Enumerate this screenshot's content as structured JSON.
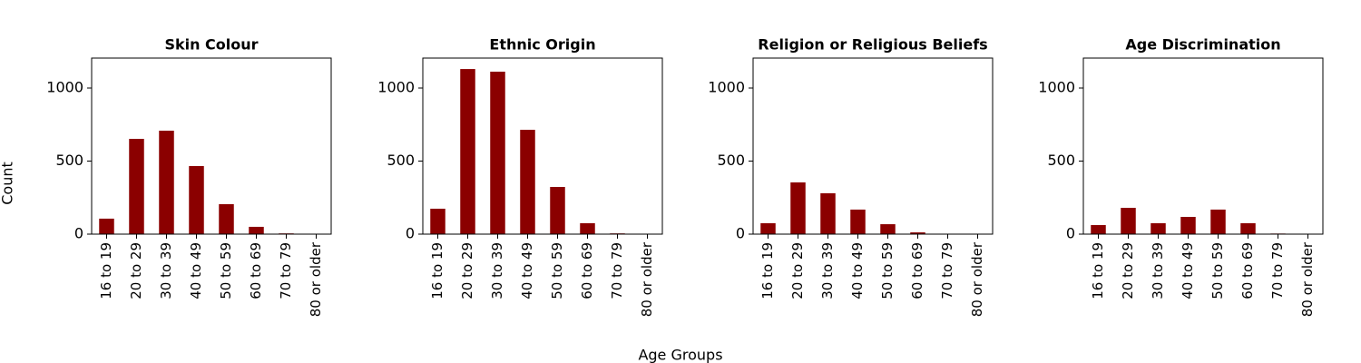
{
  "figure": {
    "ylabel": "Count",
    "xlabel": "Age Groups"
  },
  "chart_data": [
    {
      "type": "bar",
      "title": "Skin Colour",
      "categories": [
        "16 to 19",
        "20 to 29",
        "30 to 39",
        "40 to 49",
        "50 to 59",
        "60 to 69",
        "70 to 79",
        "80 or older"
      ],
      "values": [
        106,
        652,
        708,
        466,
        205,
        50,
        5,
        1
      ],
      "color": "#8b0000",
      "ylim": [
        0,
        1205
      ],
      "yticks": [
        0,
        500,
        1000
      ]
    },
    {
      "type": "bar",
      "title": "Ethnic Origin",
      "categories": [
        "16 to 19",
        "20 to 29",
        "30 to 39",
        "40 to 49",
        "50 to 59",
        "60 to 69",
        "70 to 79",
        "80 or older"
      ],
      "values": [
        174,
        1130,
        1112,
        714,
        323,
        75,
        5,
        1
      ],
      "color": "#8b0000",
      "ylim": [
        0,
        1205
      ],
      "yticks": [
        0,
        500,
        1000
      ]
    },
    {
      "type": "bar",
      "title": "Religion or Religious Beliefs",
      "categories": [
        "16 to 19",
        "20 to 29",
        "30 to 39",
        "40 to 49",
        "50 to 59",
        "60 to 69",
        "70 to 79",
        "80 or older"
      ],
      "values": [
        75,
        354,
        280,
        168,
        68,
        12,
        2,
        1
      ],
      "color": "#8b0000",
      "ylim": [
        0,
        1205
      ],
      "yticks": [
        0,
        500,
        1000
      ]
    },
    {
      "type": "bar",
      "title": "Age Discrimination",
      "categories": [
        "16 to 19",
        "20 to 29",
        "30 to 39",
        "40 to 49",
        "50 to 59",
        "60 to 69",
        "70 to 79",
        "80 or older"
      ],
      "values": [
        62,
        180,
        75,
        118,
        168,
        75,
        4,
        1
      ],
      "color": "#8b0000",
      "ylim": [
        0,
        1205
      ],
      "yticks": [
        0,
        500,
        1000
      ]
    }
  ]
}
